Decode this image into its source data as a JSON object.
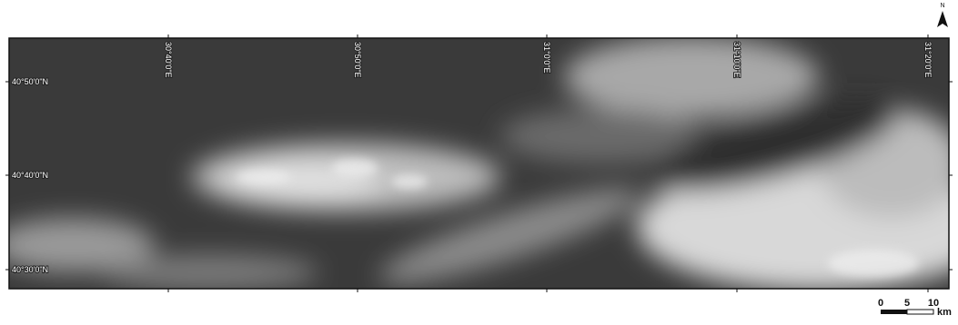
{
  "north": "N",
  "longitude_labels": [
    "30°40'0\"E",
    "30°50'0\"E",
    "31°0'0\"E",
    "31°10'0\"E",
    "31°20'0\"E"
  ],
  "latitude_labels": [
    "40°50'0\"N",
    "40°40'0\"N",
    "40°30'0\"N"
  ],
  "scale_bar": {
    "labels": [
      "0",
      "5",
      "10"
    ],
    "unit": "km"
  }
}
